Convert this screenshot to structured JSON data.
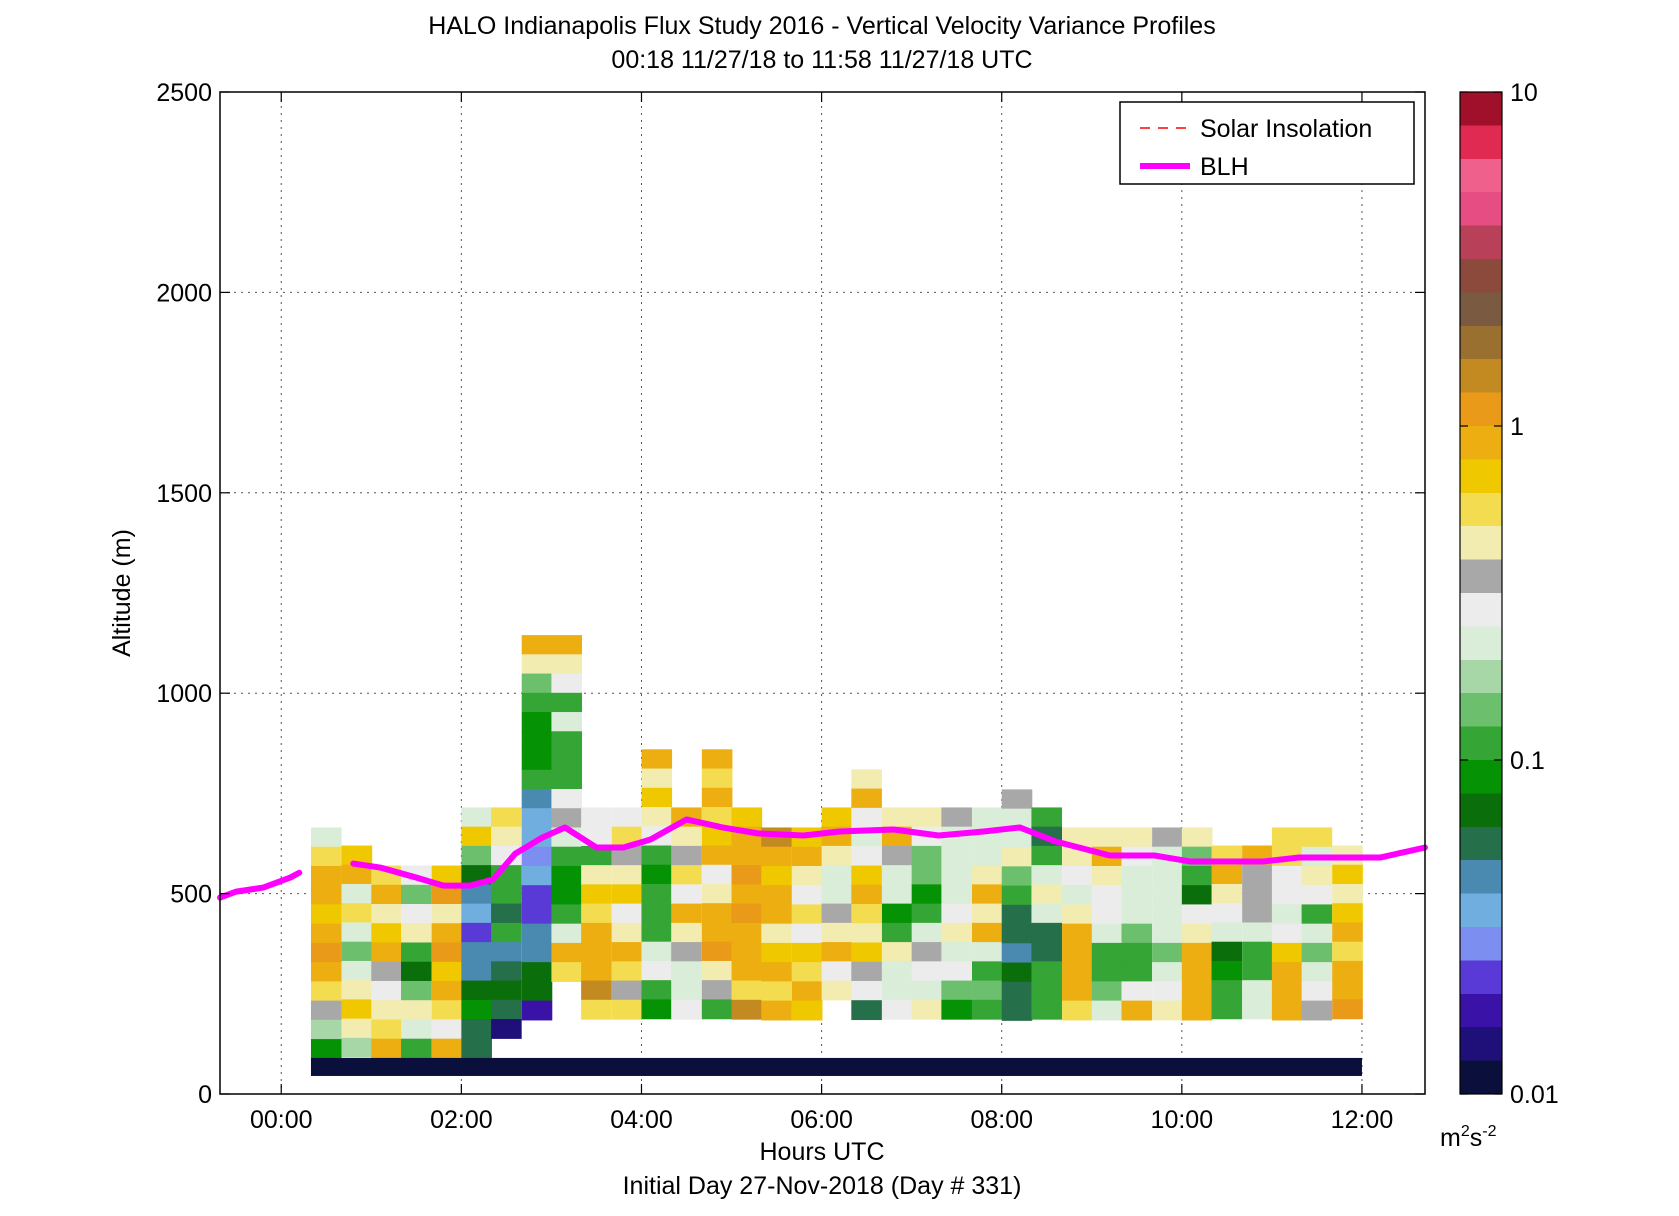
{
  "chart_data": {
    "type": "heatmap",
    "title": "HALO Indianapolis Flux Study 2016 - Vertical Velocity Variance Profiles",
    "subtitle": "00:18 11/27/18 to 11:58 11/27/18  UTC",
    "xlabel": "Hours UTC",
    "footer": "Initial Day 27-Nov-2018 (Day # 331)",
    "ylabel": "Altitude (m)",
    "xlim": [
      -0.68,
      12.7
    ],
    "ylim": [
      0,
      2500
    ],
    "grid": true,
    "x_ticks": [
      0,
      2,
      4,
      6,
      8,
      10,
      12
    ],
    "x_tick_labels": [
      "00:00",
      "02:00",
      "04:00",
      "06:00",
      "08:00",
      "10:00",
      "12:00"
    ],
    "y_ticks": [
      0,
      500,
      1000,
      1500,
      2000,
      2500
    ],
    "y_tick_labels": [
      "0",
      "500",
      "1000",
      "1500",
      "2000",
      "2500"
    ],
    "legend": {
      "placement": "top-right",
      "entries": [
        {
          "name": "Solar Insolation",
          "color": "#ff0000",
          "style": "dashed"
        },
        {
          "name": "BLH",
          "color": "#ff00ff",
          "style": "solid"
        }
      ]
    },
    "colorbar": {
      "scale": "log",
      "range": [
        0.01,
        10
      ],
      "tick_values": [
        0.01,
        0.1,
        1,
        10
      ],
      "tick_labels": [
        "0.01",
        "0.1",
        "1",
        "10"
      ],
      "unit_base": "m",
      "unit_sup1": "2",
      "unit_mid": "s",
      "unit_sup2": "-2",
      "colors": [
        "#0a0f3c",
        "#1e1078",
        "#3a12a8",
        "#5a3ad6",
        "#7c8ef0",
        "#70aee0",
        "#4a8ab0",
        "#256f4a",
        "#0a6e0a",
        "#059205",
        "#35a535",
        "#6cbf6c",
        "#a7d7a7",
        "#d9edd9",
        "#ececec",
        "#a8a8a8",
        "#f2ecb0",
        "#f4dc50",
        "#f0c800",
        "#ecae10",
        "#e89a18",
        "#c48a22",
        "#9a7030",
        "#7a5a40",
        "#8c4a3c",
        "#b84058",
        "#e64d82",
        "#f0608c",
        "#e02a52",
        "#a0102a"
      ]
    },
    "x_step_hours": 0.333,
    "bin_height_m": 48,
    "first_bin_bottom_m": 90,
    "bottom_band": {
      "x_start": 0.33,
      "x_end": 12.0,
      "y_min": 45,
      "y_max": 90,
      "value": 0.01
    },
    "blh": {
      "x": [
        -0.68,
        -0.5,
        -0.2,
        0.1,
        0.2,
        0.5,
        0.8,
        1.1,
        1.5,
        1.8,
        2.1,
        2.35,
        2.6,
        2.9,
        3.15,
        3.5,
        3.8,
        4.1,
        4.5,
        4.9,
        5.3,
        5.8,
        6.2,
        6.8,
        7.3,
        7.8,
        8.2,
        8.6,
        9.2,
        9.7,
        10.1,
        10.5,
        10.9,
        11.3,
        11.7,
        12.2,
        12.5,
        12.7
      ],
      "y": [
        490,
        505,
        515,
        540,
        552,
        null,
        575,
        565,
        540,
        520,
        520,
        535,
        600,
        640,
        665,
        615,
        615,
        635,
        685,
        665,
        650,
        645,
        655,
        660,
        645,
        655,
        665,
        630,
        595,
        595,
        580,
        580,
        580,
        590,
        590,
        590,
        605,
        615
      ]
    },
    "heatmap": [
      {
        "x": 0.33,
        "y_top": 665,
        "values": [
          0.25,
          0.6,
          0.9,
          0.8,
          0.7,
          0.9,
          1.0,
          0.8,
          0.6,
          0.35,
          0.18,
          0.08
        ]
      },
      {
        "x": 0.67,
        "y_top": 620,
        "values": [
          0.7,
          0.9,
          0.25,
          0.6,
          0.25,
          0.15,
          0.2,
          0.5,
          0.7,
          0.5,
          0.18,
          0.25
        ]
      },
      {
        "x": 1.0,
        "y_top": 570,
        "values": [
          0.6,
          0.8,
          0.5,
          0.7,
          0.9,
          0.35,
          0.3,
          0.45,
          0.6,
          0.8
        ]
      },
      {
        "x": 1.33,
        "y_top": 570,
        "values": [
          0.3,
          0.15,
          0.3,
          0.4,
          0.12,
          0.07,
          0.15,
          0.45,
          0.2,
          0.12
        ]
      },
      {
        "x": 1.67,
        "y_top": 570,
        "values": [
          0.7,
          1.0,
          0.5,
          0.9,
          1.0,
          0.7,
          0.8,
          0.6,
          0.3,
          0.9
        ]
      },
      {
        "x": 2.0,
        "y_top": 715,
        "values": [
          0.2,
          0.7,
          0.15,
          0.07,
          0.05,
          0.035,
          0.025,
          0.045,
          0.04,
          0.07,
          0.08,
          0.06,
          0.06
        ]
      },
      {
        "x": 2.33,
        "y_top": 715,
        "values": [
          0.6,
          0.45,
          0.3,
          0.12,
          0.12,
          0.06,
          0.1,
          0.045,
          0.06,
          0.065,
          0.06,
          0.015
        ]
      },
      {
        "x": 2.67,
        "y_top": 1145,
        "values": [
          0.8,
          0.5,
          0.15,
          0.12,
          0.09,
          0.09,
          0.08,
          0.12,
          0.04,
          0.035,
          0.035,
          0.03,
          0.035,
          0.025,
          0.022,
          0.04,
          0.05,
          0.065,
          0.065,
          0.018
        ]
      },
      {
        "x": 3.0,
        "y_top": 1145,
        "values": [
          0.8,
          0.45,
          0.3,
          0.12,
          0.2,
          0.12,
          0.12,
          0.1,
          0.3,
          0.35,
          0.2,
          0.12,
          0.08,
          0.08,
          0.12,
          0.2,
          0.8,
          0.6
        ]
      },
      {
        "x": 3.33,
        "y_top": 715,
        "values": [
          0.3,
          0.3,
          0.1,
          0.5,
          0.7,
          0.6,
          0.8,
          0.9,
          0.8,
          1.5,
          0.6
        ]
      },
      {
        "x": 3.67,
        "y_top": 715,
        "values": [
          0.3,
          0.6,
          0.35,
          0.5,
          0.7,
          0.3,
          0.5,
          0.9,
          0.6,
          0.35,
          0.6
        ]
      },
      {
        "x": 4.0,
        "y_top": 860,
        "values": [
          0.8,
          0.4,
          0.7,
          0.5,
          0.3,
          0.12,
          0.08,
          0.1,
          0.1,
          0.12,
          0.25,
          0.3,
          0.12,
          0.08
        ]
      },
      {
        "x": 4.33,
        "y_top": 715,
        "values": [
          0.8,
          0.5,
          0.35,
          0.6,
          0.3,
          0.9,
          0.4,
          0.35,
          0.2,
          0.25,
          0.3
        ]
      },
      {
        "x": 4.67,
        "y_top": 860,
        "values": [
          0.8,
          0.6,
          0.8,
          0.6,
          0.7,
          0.9,
          0.3,
          0.5,
          0.9,
          0.8,
          1.0,
          0.45,
          0.35,
          0.1
        ]
      },
      {
        "x": 5.0,
        "y_top": 715,
        "values": [
          0.7,
          0.9,
          0.8,
          1.0,
          0.9,
          1.0,
          0.8,
          0.9,
          0.9,
          0.6,
          1.5
        ]
      },
      {
        "x": 5.33,
        "y_top": 665,
        "values": [
          1.5,
          0.8,
          0.7,
          0.8,
          0.9,
          0.4,
          0.7,
          0.8,
          0.6,
          0.8
        ]
      },
      {
        "x": 5.67,
        "y_top": 665,
        "values": [
          0.7,
          0.9,
          0.5,
          0.3,
          0.6,
          0.3,
          0.7,
          0.6,
          0.8,
          0.7
        ]
      },
      {
        "x": 6.0,
        "y_top": 715,
        "values": [
          0.7,
          0.9,
          0.4,
          0.25,
          0.2,
          0.35,
          0.5,
          0.8,
          0.3,
          0.45
        ]
      },
      {
        "x": 6.33,
        "y_top": 810,
        "values": [
          0.45,
          0.8,
          0.3,
          0.2,
          0.3,
          0.7,
          0.9,
          0.6,
          0.4,
          0.7,
          0.35,
          0.3,
          0.06
        ]
      },
      {
        "x": 6.67,
        "y_top": 715,
        "values": [
          0.4,
          0.8,
          0.35,
          0.2,
          0.25,
          0.08,
          0.12,
          0.4,
          0.25,
          0.2,
          0.3
        ]
      },
      {
        "x": 7.0,
        "y_top": 715,
        "values": [
          0.45,
          0.3,
          0.15,
          0.15,
          0.08,
          0.12,
          0.25,
          0.35,
          0.3,
          0.25,
          0.5
        ]
      },
      {
        "x": 7.33,
        "y_top": 715,
        "values": [
          0.35,
          0.2,
          0.25,
          0.2,
          0.25,
          0.3,
          0.4,
          0.25,
          0.3,
          0.15,
          0.08
        ]
      },
      {
        "x": 7.67,
        "y_top": 715,
        "values": [
          0.2,
          0.25,
          0.2,
          0.5,
          0.8,
          0.45,
          0.8,
          0.25,
          0.12,
          0.15,
          0.12
        ]
      },
      {
        "x": 8.0,
        "y_top": 760,
        "values": [
          0.35,
          0.2,
          0.25,
          0.4,
          0.15,
          0.12,
          0.06,
          0.06,
          0.05,
          0.07,
          0.06,
          0.06
        ]
      },
      {
        "x": 8.33,
        "y_top": 715,
        "values": [
          0.12,
          0.06,
          0.12,
          0.2,
          0.45,
          0.25,
          0.06,
          0.06,
          0.12,
          0.12,
          0.12
        ]
      },
      {
        "x": 8.67,
        "y_top": 665,
        "values": [
          0.5,
          0.4,
          0.3,
          0.25,
          0.5,
          0.8,
          0.9,
          0.8,
          0.9,
          0.6
        ]
      },
      {
        "x": 9.0,
        "y_top": 665,
        "values": [
          0.5,
          0.9,
          0.4,
          0.3,
          0.3,
          0.25,
          0.12,
          0.12,
          0.15,
          0.25
        ]
      },
      {
        "x": 9.33,
        "y_top": 665,
        "values": [
          0.45,
          0.3,
          0.2,
          0.2,
          0.25,
          0.15,
          0.12,
          0.12,
          0.3,
          0.8
        ]
      },
      {
        "x": 9.67,
        "y_top": 665,
        "values": [
          0.35,
          0.25,
          0.25,
          0.25,
          0.25,
          0.25,
          0.15,
          0.2,
          0.3,
          0.4
        ]
      },
      {
        "x": 10.0,
        "y_top": 665,
        "values": [
          0.45,
          0.15,
          0.12,
          0.07,
          0.3,
          0.5,
          0.9,
          0.9,
          0.8,
          0.8
        ]
      },
      {
        "x": 10.33,
        "y_top": 620,
        "values": [
          0.6,
          0.8,
          0.4,
          0.3,
          0.25,
          0.07,
          0.08,
          0.12,
          0.12
        ]
      },
      {
        "x": 10.67,
        "y_top": 620,
        "values": [
          0.9,
          0.35,
          0.35,
          0.35,
          0.25,
          0.12,
          0.12,
          0.2,
          0.2
        ]
      },
      {
        "x": 11.0,
        "y_top": 665,
        "values": [
          0.6,
          0.6,
          0.3,
          0.3,
          0.2,
          0.3,
          0.7,
          0.8,
          0.9,
          0.8
        ]
      },
      {
        "x": 11.33,
        "y_top": 665,
        "values": [
          0.6,
          0.2,
          0.4,
          0.3,
          0.12,
          0.25,
          0.15,
          0.25,
          0.3,
          0.35
        ]
      },
      {
        "x": 11.67,
        "y_top": 620,
        "values": [
          0.5,
          0.7,
          0.5,
          0.7,
          0.8,
          0.6,
          0.8,
          0.9,
          1.0
        ]
      }
    ]
  }
}
